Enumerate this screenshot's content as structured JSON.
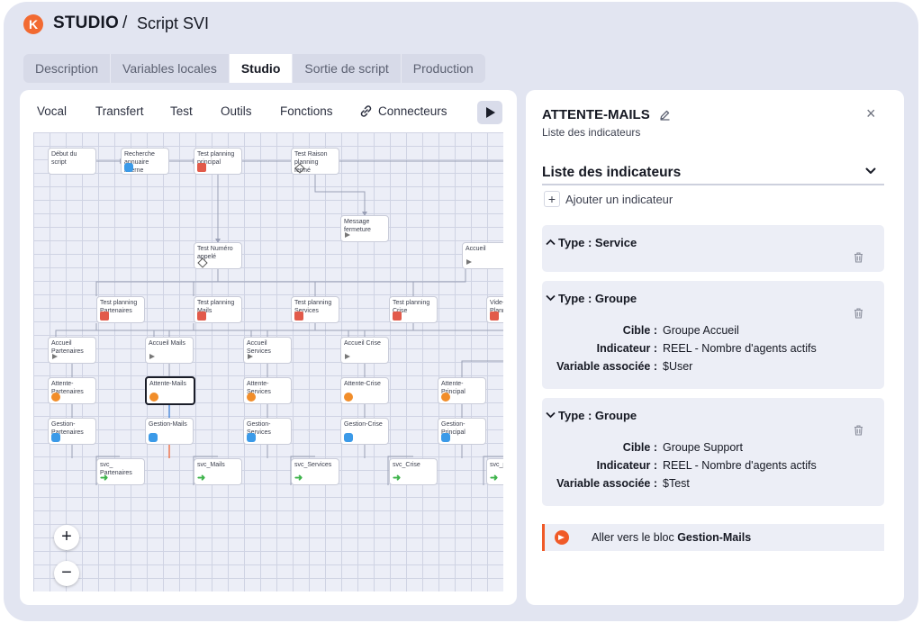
{
  "header": {
    "brand": "STUDIO",
    "separator": "/",
    "title": "Script SVI"
  },
  "tabs": [
    {
      "label": "Description",
      "active": false
    },
    {
      "label": "Variables locales",
      "active": false
    },
    {
      "label": "Studio",
      "active": true
    },
    {
      "label": "Sortie de script",
      "active": false
    },
    {
      "label": "Production",
      "active": false
    }
  ],
  "toolbar": {
    "items": [
      "Vocal",
      "Transfert",
      "Test",
      "Outils",
      "Fonctions",
      "Connecteurs"
    ],
    "connector_icon": "link-icon",
    "play_icon": "play-icon"
  },
  "flow": {
    "nodes": [
      {
        "id": "n1",
        "line1": "Début du script",
        "line2": "",
        "icon": "none"
      },
      {
        "id": "n2",
        "line1": "Recherche",
        "line2": "annuaire interne",
        "icon": "phone"
      },
      {
        "id": "n3",
        "line1": "Test planning",
        "line2": "principal",
        "icon": "calendar"
      },
      {
        "id": "n4",
        "line1": "Test Raison",
        "line2": "planning fermé",
        "icon": "diamond"
      },
      {
        "id": "n5",
        "line1": "Message",
        "line2": "fermeture",
        "icon": "speaker"
      },
      {
        "id": "n6",
        "line1": "Test Numéro",
        "line2": "appelé",
        "icon": "diamond"
      },
      {
        "id": "n7",
        "line1": "Accueil",
        "line2": "",
        "icon": "speaker"
      },
      {
        "id": "n8",
        "line1": "Test planning",
        "line2": "Partenaires",
        "icon": "calendar"
      },
      {
        "id": "n9",
        "line1": "Test planning",
        "line2": "Mails",
        "icon": "calendar"
      },
      {
        "id": "n10",
        "line1": "Test planning",
        "line2": "Services",
        "icon": "calendar"
      },
      {
        "id": "n11",
        "line1": "Test planning",
        "line2": "Crise",
        "icon": "calendar"
      },
      {
        "id": "n12",
        "line1": "Vide-",
        "line2": "Planning",
        "icon": "calendar"
      },
      {
        "id": "n13",
        "line1": "Accueil",
        "line2": "Partenaires",
        "icon": "speaker"
      },
      {
        "id": "n14",
        "line1": "Accueil Mails",
        "line2": "",
        "icon": "speaker"
      },
      {
        "id": "n15",
        "line1": "Accueil",
        "line2": "Services",
        "icon": "speaker"
      },
      {
        "id": "n16",
        "line1": "Accueil Crise",
        "line2": "",
        "icon": "speaker"
      },
      {
        "id": "n17",
        "line1": "Attente-",
        "line2": "Partenaires",
        "icon": "wait"
      },
      {
        "id": "n18",
        "line1": "Attente-Mails",
        "line2": "",
        "icon": "wait",
        "selected": true
      },
      {
        "id": "n19",
        "line1": "Attente-",
        "line2": "Services",
        "icon": "wait"
      },
      {
        "id": "n20",
        "line1": "Attente-Crise",
        "line2": "",
        "icon": "wait"
      },
      {
        "id": "n21",
        "line1": "Attente-",
        "line2": "Principal",
        "icon": "wait"
      },
      {
        "id": "n22",
        "line1": "Gestion-",
        "line2": "Partenaires",
        "icon": "phone"
      },
      {
        "id": "n23",
        "line1": "Gestion-Mails",
        "line2": "",
        "icon": "phone"
      },
      {
        "id": "n24",
        "line1": "Gestion-",
        "line2": "Services",
        "icon": "phone"
      },
      {
        "id": "n25",
        "line1": "Gestion-Crise",
        "line2": "",
        "icon": "phone"
      },
      {
        "id": "n26",
        "line1": "Gestion-",
        "line2": "Principal",
        "icon": "phone"
      },
      {
        "id": "n27",
        "line1": "svc_",
        "line2": "Partenaires",
        "icon": "arrow"
      },
      {
        "id": "n28",
        "line1": "svc_Mails",
        "line2": "",
        "icon": "arrow"
      },
      {
        "id": "n29",
        "line1": "svc_Services",
        "line2": "",
        "icon": "arrow"
      },
      {
        "id": "n30",
        "line1": "svc_Crise",
        "line2": "",
        "icon": "arrow"
      },
      {
        "id": "n31",
        "line1": "svc_p",
        "line2": "",
        "icon": "arrow"
      }
    ],
    "zoom_in": "+",
    "zoom_out": "−"
  },
  "panel": {
    "title": "ATTENTE-MAILS",
    "subtitle": "Liste des indicateurs",
    "close": "×",
    "section_title": "Liste des indicateurs",
    "add_label": "Ajouter un indicateur",
    "add_symbol": "+",
    "cards": [
      {
        "title": "Type : Service",
        "rows": []
      },
      {
        "title": "Type : Groupe",
        "rows": [
          {
            "label": "Cible :",
            "value": "Groupe Accueil"
          },
          {
            "label": "Indicateur :",
            "value": "REEL - Nombre d'agents actifs"
          },
          {
            "label": "Variable associée :",
            "value": "$User"
          }
        ]
      },
      {
        "title": "Type : Groupe",
        "rows": [
          {
            "label": "Cible :",
            "value": "Groupe Support"
          },
          {
            "label": "Indicateur :",
            "value": "REEL - Nombre d'agents actifs"
          },
          {
            "label": "Variable associée :",
            "value": "$Test"
          }
        ]
      }
    ],
    "goto_prefix": "Aller vers le bloc",
    "goto_target": "Gestion-Mails"
  },
  "colors": {
    "accent": "#f05a28",
    "background": "#e2e5f1",
    "selected_border": "#1a1d28"
  }
}
